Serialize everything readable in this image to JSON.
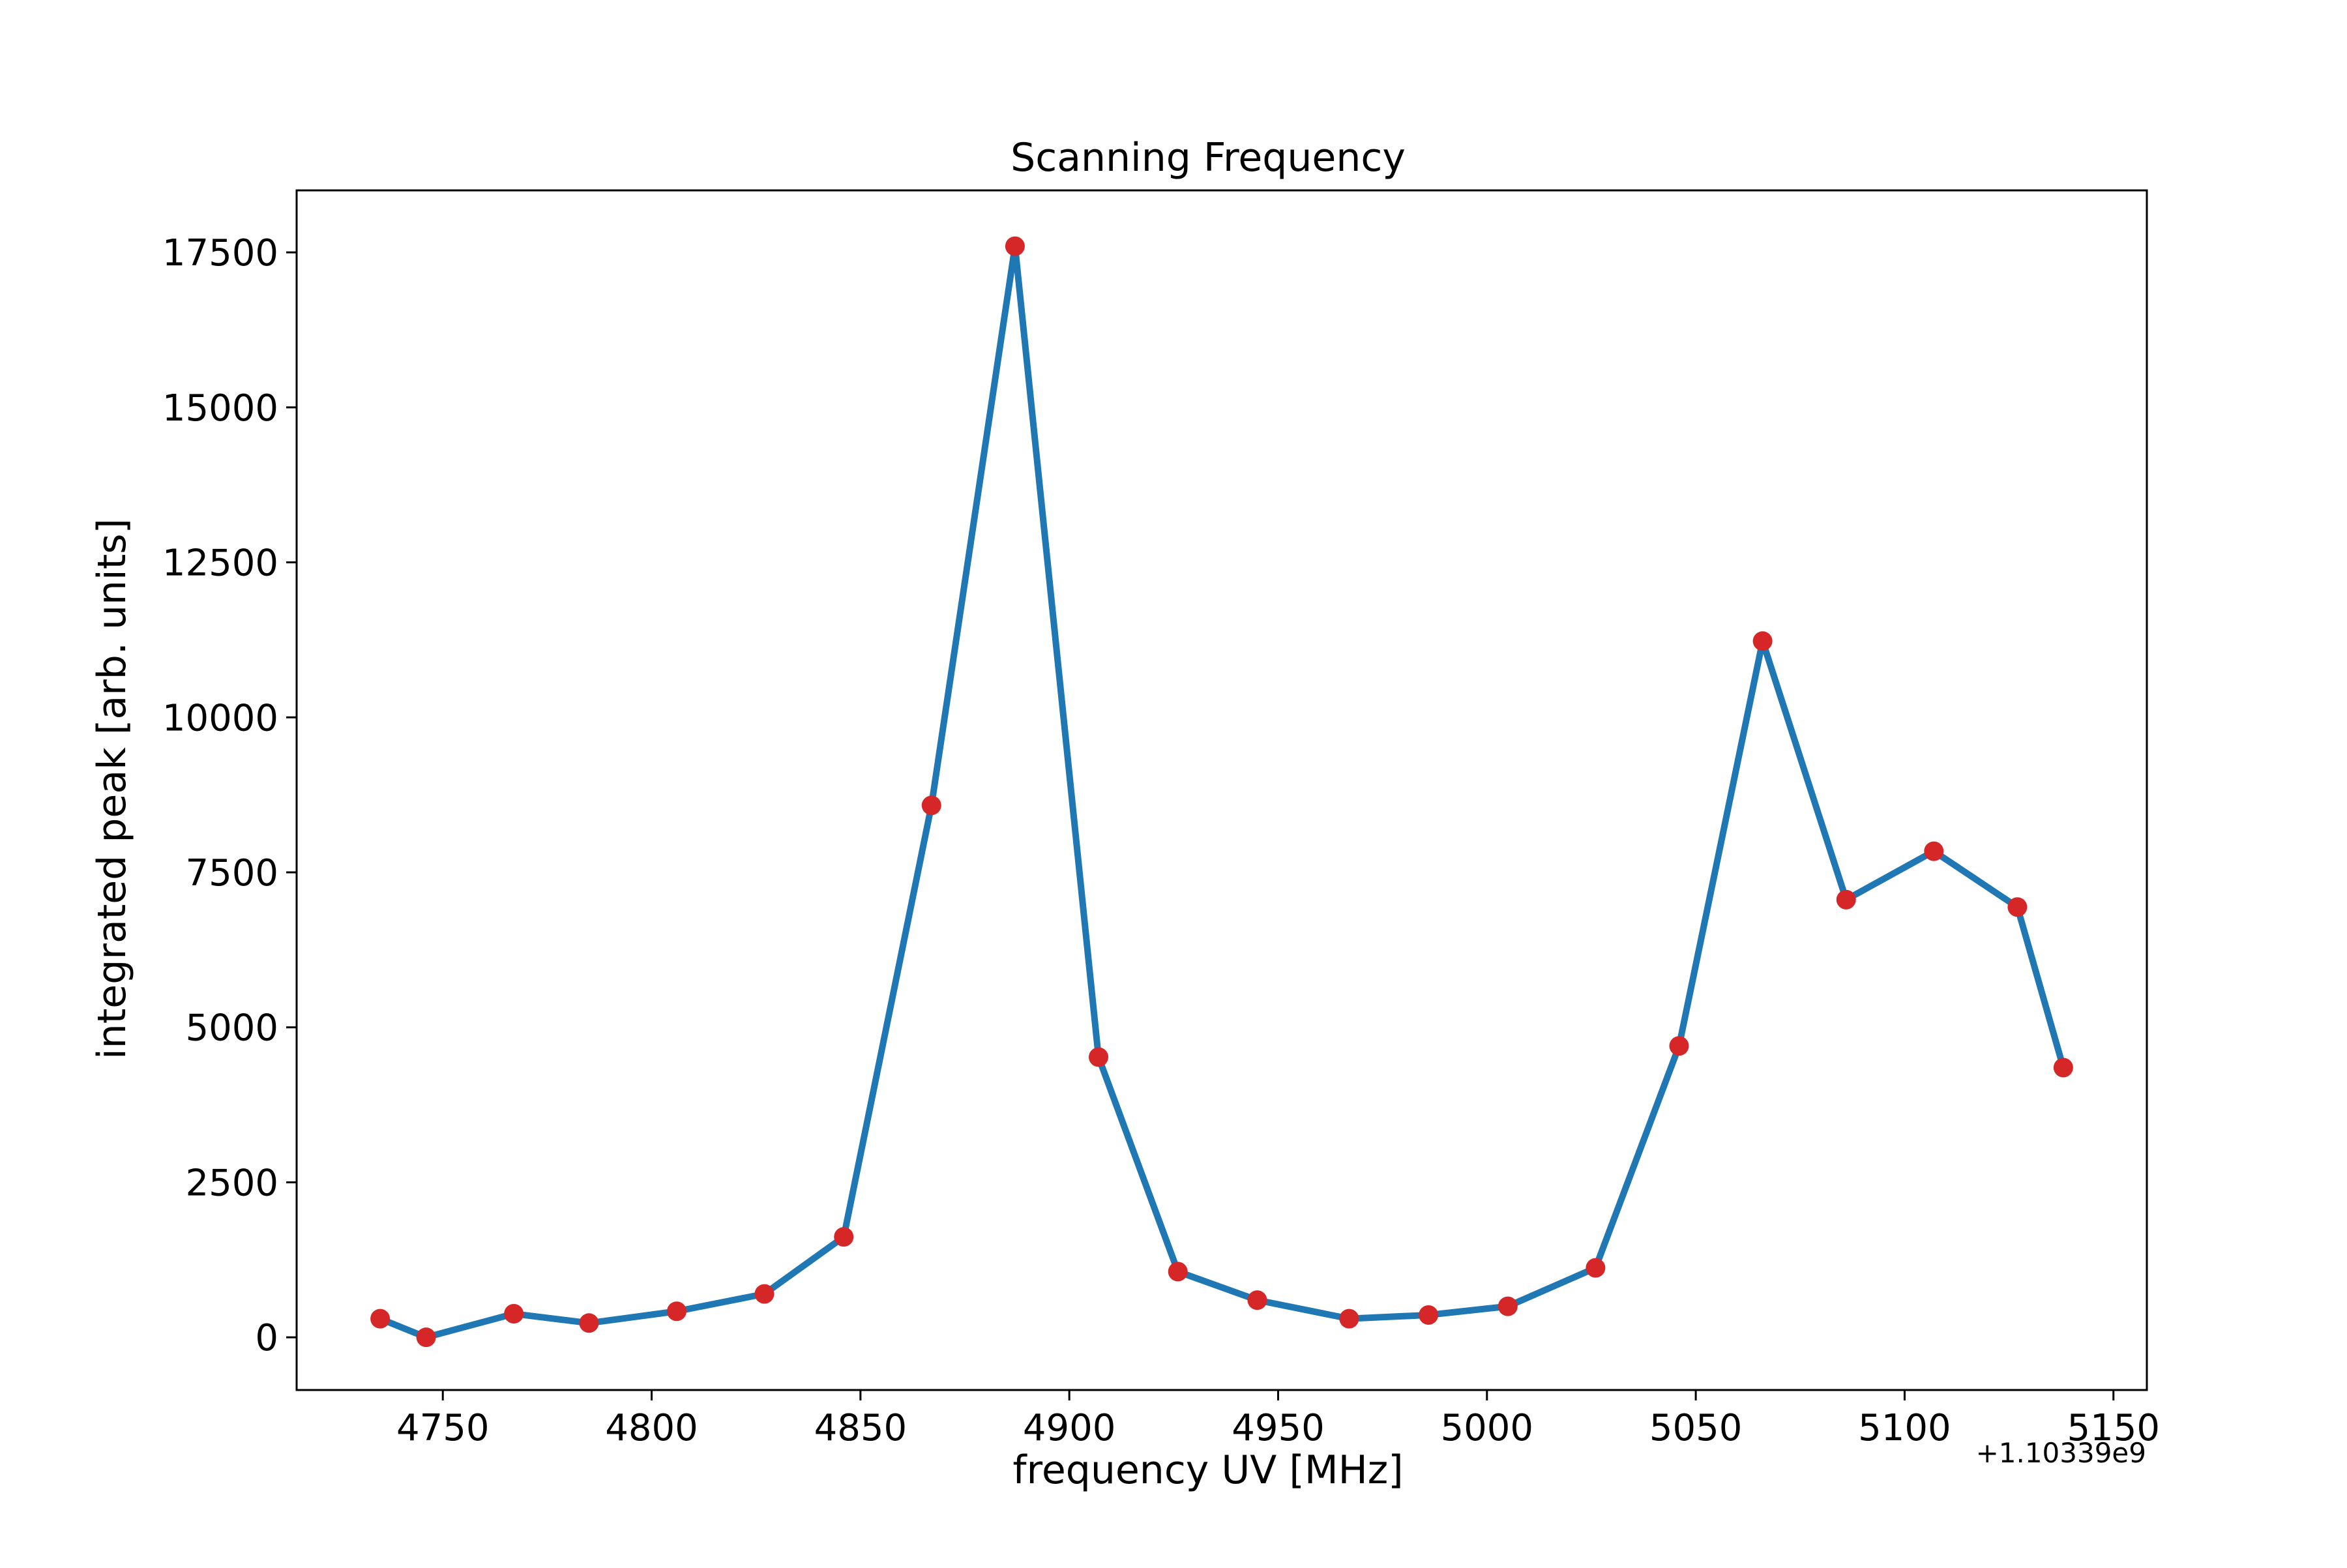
{
  "chart_data": {
    "type": "line",
    "title": "Scanning Frequency",
    "xlabel": "frequency UV [MHz]",
    "ylabel": "integrated peak [arb. units]",
    "x_offset_label": "+1.10339e9",
    "xlim": [
      4715,
      5158
    ],
    "ylim": [
      -850,
      18500
    ],
    "xticks": [
      4750,
      4800,
      4850,
      4900,
      4950,
      5000,
      5050,
      5100,
      5150
    ],
    "yticks": [
      0,
      2500,
      5000,
      7500,
      10000,
      12500,
      15000,
      17500
    ],
    "grid": false,
    "line_color": "#1f77b4",
    "marker_color": "#d62728",
    "x": [
      4735,
      4746,
      4767,
      4785,
      4806,
      4827,
      4846,
      4867,
      4887,
      4907,
      4926,
      4945,
      4967,
      4986,
      5005,
      5026,
      5046,
      5066,
      5086,
      5107,
      5127,
      5138
    ],
    "series": [
      {
        "values": [
          300,
          0,
          380,
          230,
          420,
          700,
          1620,
          8580,
          17600,
          4520,
          1060,
          600,
          300,
          360,
          500,
          1120,
          4700,
          11230,
          7060,
          7840,
          6940,
          4350
        ]
      }
    ]
  }
}
